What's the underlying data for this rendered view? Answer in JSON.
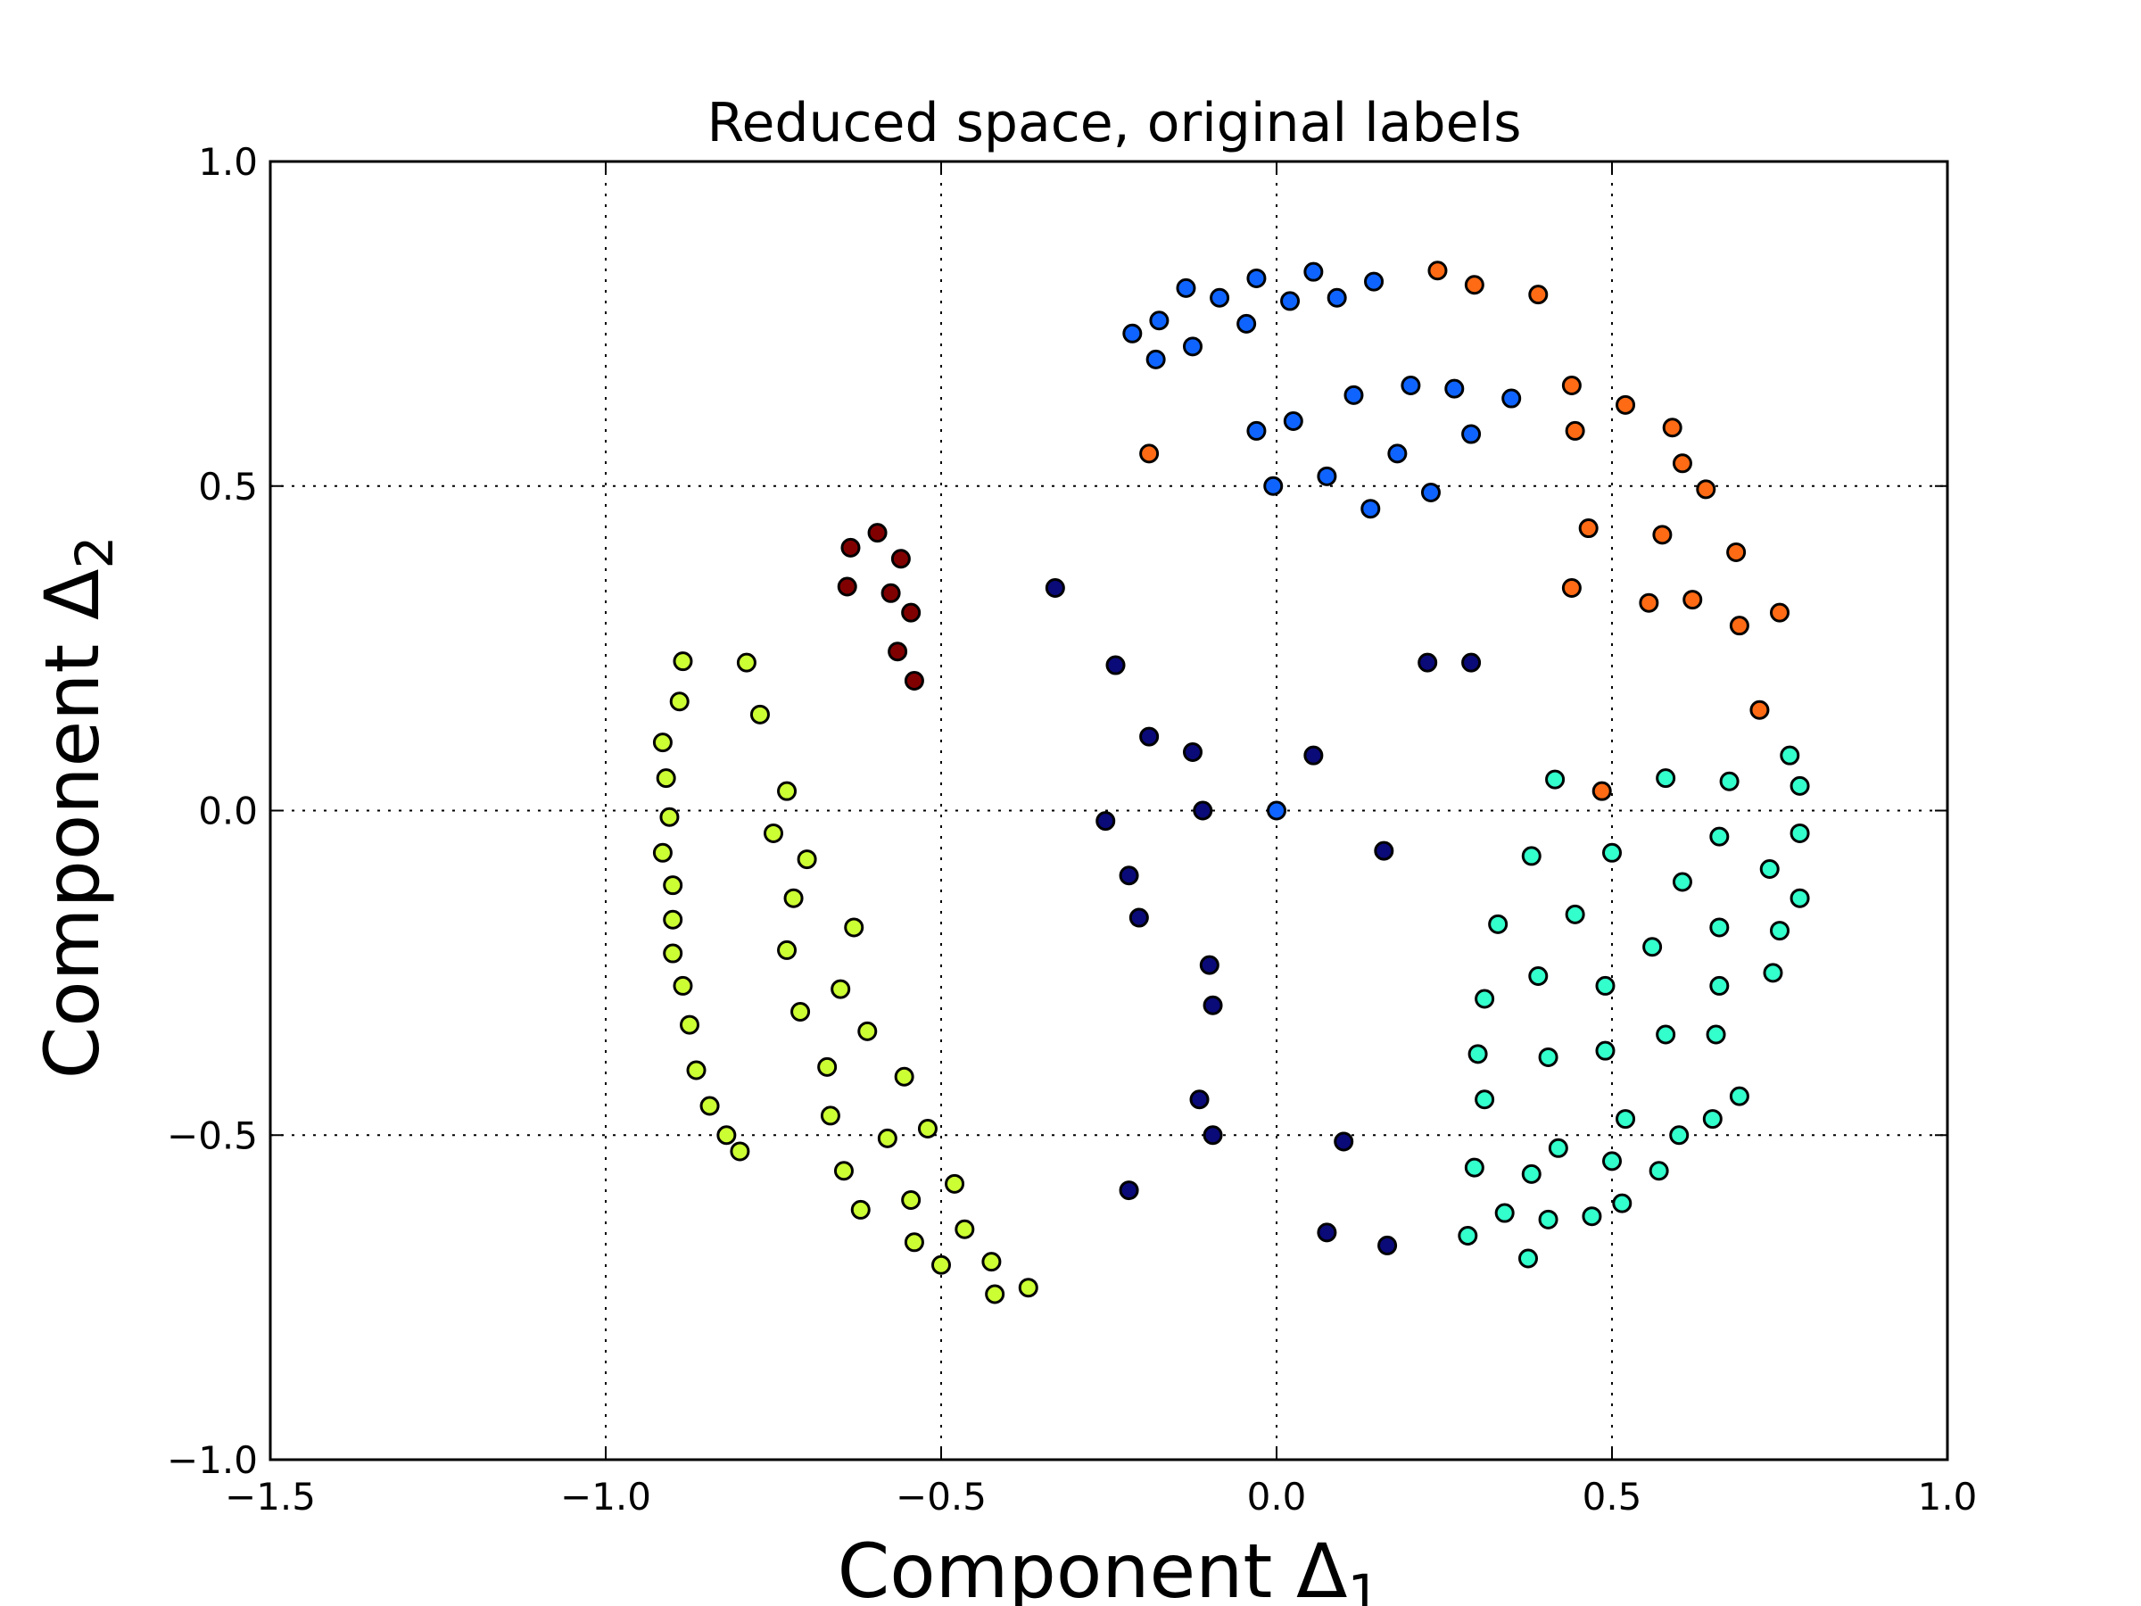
{
  "chart_data": {
    "type": "scatter",
    "title": "Reduced space, original labels",
    "xlabel": {
      "main": "Component Δ",
      "sub": "1"
    },
    "ylabel": {
      "main": "Component Δ",
      "sub": "2"
    },
    "xlim": [
      -1.5,
      1.0
    ],
    "ylim": [
      -1.0,
      1.0
    ],
    "xticks": [
      -1.5,
      -1.0,
      -0.5,
      0.0,
      0.5,
      1.0
    ],
    "xtick_labels": [
      "−1.5",
      "−1.0",
      "−0.5",
      "0.0",
      "0.5",
      "1.0"
    ],
    "yticks": [
      -1.0,
      -0.5,
      0.0,
      0.5,
      1.0
    ],
    "ytick_labels": [
      "−1.0",
      "−0.5",
      "0.0",
      "0.5",
      "1.0"
    ],
    "grid": true,
    "series": [
      {
        "color": "#0a0a78",
        "x": [
          -0.33,
          -0.24,
          -0.19,
          -0.125,
          -0.11,
          -0.255,
          -0.22,
          -0.205,
          -0.1,
          -0.095,
          -0.115,
          -0.095,
          -0.22,
          0.055,
          0.16,
          0.225,
          0.29,
          0.1,
          0.075,
          0.165
        ],
        "y": [
          0.343,
          0.224,
          0.114,
          0.09,
          0.0,
          -0.016,
          -0.1,
          -0.165,
          -0.238,
          -0.3,
          -0.445,
          -0.5,
          -0.585,
          0.085,
          -0.062,
          0.228,
          0.228,
          -0.51,
          -0.65,
          -0.67
        ]
      },
      {
        "color": "#0f64ff",
        "x": [
          -0.215,
          -0.175,
          -0.135,
          -0.085,
          -0.045,
          -0.03,
          0.0,
          0.02,
          0.055,
          0.09,
          0.145,
          -0.18,
          -0.125,
          0.115,
          0.2,
          0.265,
          0.35,
          -0.03,
          0.025,
          0.075,
          0.18,
          0.29,
          0.14,
          0.23,
          -0.005
        ],
        "y": [
          0.735,
          0.755,
          0.805,
          0.79,
          0.75,
          0.82,
          0.0,
          0.785,
          0.83,
          0.79,
          0.815,
          0.695,
          0.715,
          0.64,
          0.655,
          0.65,
          0.635,
          0.585,
          0.6,
          0.515,
          0.55,
          0.58,
          0.465,
          0.49,
          0.5
        ]
      },
      {
        "color": "#33ffcc",
        "x": [
          0.415,
          0.58,
          0.675,
          0.765,
          0.78,
          0.38,
          0.5,
          0.66,
          0.78,
          0.735,
          0.605,
          0.78,
          0.33,
          0.445,
          0.56,
          0.66,
          0.75,
          0.31,
          0.39,
          0.49,
          0.66,
          0.74,
          0.3,
          0.405,
          0.49,
          0.58,
          0.655,
          0.31,
          0.52,
          0.69,
          0.42,
          0.6,
          0.65,
          0.295,
          0.38,
          0.5,
          0.57,
          0.285,
          0.34,
          0.405,
          0.47,
          0.515,
          0.375
        ],
        "y": [
          0.048,
          0.05,
          0.045,
          0.085,
          0.038,
          -0.07,
          -0.065,
          -0.04,
          -0.035,
          -0.09,
          -0.11,
          -0.135,
          -0.175,
          -0.16,
          -0.21,
          -0.18,
          -0.185,
          -0.29,
          -0.255,
          -0.27,
          -0.27,
          -0.25,
          -0.375,
          -0.38,
          -0.37,
          -0.345,
          -0.345,
          -0.445,
          -0.475,
          -0.44,
          -0.52,
          -0.5,
          -0.475,
          -0.55,
          -0.56,
          -0.54,
          -0.555,
          -0.655,
          -0.62,
          -0.63,
          -0.625,
          -0.605,
          -0.69
        ]
      },
      {
        "color": "#ccff33",
        "x": [
          -0.885,
          -0.79,
          -0.89,
          -0.915,
          -0.77,
          -0.91,
          -0.73,
          -0.905,
          -0.915,
          -0.75,
          -0.9,
          -0.7,
          -0.9,
          -0.72,
          -0.9,
          -0.885,
          -0.63,
          -0.875,
          -0.73,
          -0.65,
          -0.865,
          -0.71,
          -0.61,
          -0.845,
          -0.67,
          -0.555,
          -0.82,
          -0.665,
          -0.8,
          -0.58,
          -0.52,
          -0.645,
          -0.48,
          -0.62,
          -0.545,
          -0.465,
          -0.54,
          -0.5,
          -0.425,
          -0.42,
          -0.37
        ],
        "y": [
          0.23,
          0.228,
          0.168,
          0.105,
          0.148,
          0.05,
          0.03,
          -0.01,
          -0.065,
          -0.035,
          -0.115,
          -0.075,
          -0.168,
          -0.135,
          -0.22,
          -0.27,
          -0.18,
          -0.33,
          -0.215,
          -0.275,
          -0.4,
          -0.31,
          -0.34,
          -0.455,
          -0.395,
          -0.41,
          -0.5,
          -0.47,
          -0.525,
          -0.505,
          -0.49,
          -0.555,
          -0.575,
          -0.615,
          -0.6,
          -0.645,
          -0.665,
          -0.7,
          -0.695,
          -0.745,
          -0.735
        ]
      },
      {
        "color": "#ff6a14",
        "x": [
          0.24,
          0.295,
          0.39,
          -0.19,
          0.44,
          0.445,
          0.52,
          0.59,
          0.605,
          0.64,
          0.465,
          0.575,
          0.685,
          0.44,
          0.555,
          0.62,
          0.69,
          0.75,
          0.72,
          0.485
        ],
        "y": [
          0.832,
          0.81,
          0.795,
          0.55,
          0.655,
          0.585,
          0.625,
          0.59,
          0.535,
          0.495,
          0.435,
          0.425,
          0.398,
          0.343,
          0.32,
          0.325,
          0.285,
          0.305,
          0.155,
          0.03
        ]
      },
      {
        "color": "#800000",
        "x": [
          -0.635,
          -0.595,
          -0.56,
          -0.64,
          -0.575,
          -0.545,
          -0.565,
          -0.54
        ],
        "y": [
          0.405,
          0.428,
          0.388,
          0.345,
          0.335,
          0.305,
          0.245,
          0.2
        ]
      }
    ]
  }
}
